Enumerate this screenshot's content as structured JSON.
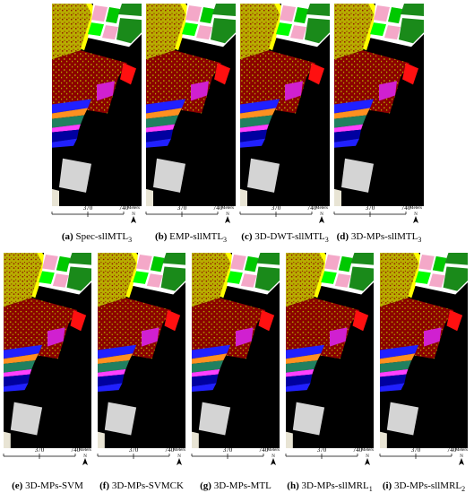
{
  "scale_bar": {
    "ticks": [
      "370",
      "740"
    ],
    "unit": "Meters",
    "north": "N"
  },
  "panels": [
    {
      "label": "(a)",
      "name": "Spec-sllMTL",
      "subscript": "3"
    },
    {
      "label": "(b)",
      "name": "EMP-sllMTL",
      "subscript": "3"
    },
    {
      "label": "(c)",
      "name": "3D-DWT-sllMTL",
      "subscript": "3"
    },
    {
      "label": "(d)",
      "name": "3D-MPs-sllMTL",
      "subscript": "3"
    },
    {
      "label": "(e)",
      "name": "3D-MPs-SVM"
    },
    {
      "label": "(f)",
      "name": "3D-MPs-SVMCK"
    },
    {
      "label": "(g)",
      "name": "3D-MPs-MTL"
    },
    {
      "label": "(h)",
      "name": "3D-MPs-sllMRL",
      "subscript": "1"
    },
    {
      "label": "(i)",
      "name": "3D-MPs-sllMRL",
      "subscript": "2"
    }
  ]
}
